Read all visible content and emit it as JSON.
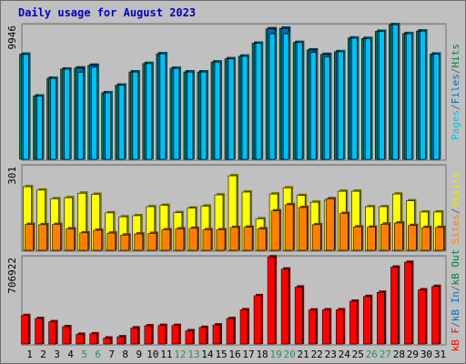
{
  "chart_data": [
    {
      "type": "bar",
      "title": "Daily usage for August 2023",
      "categories": [
        "1",
        "2",
        "3",
        "4",
        "5",
        "6",
        "7",
        "8",
        "9",
        "10",
        "11",
        "12",
        "13",
        "14",
        "15",
        "16",
        "17",
        "18",
        "19",
        "20",
        "21",
        "22",
        "23",
        "24",
        "25",
        "26",
        "27",
        "28",
        "29",
        "30",
        "31"
      ],
      "weekend_days": [
        "5",
        "6",
        "12",
        "13",
        "19",
        "20",
        "26",
        "27"
      ],
      "ymax_label": "9946",
      "ylim": [
        0,
        9946
      ],
      "right_labels": [
        {
          "text": "Pages",
          "color": "#00c0f0"
        },
        {
          "text": "/",
          "color": "#606060"
        },
        {
          "text": "Files",
          "color": "#0070c0"
        },
        {
          "text": "/",
          "color": "#606060"
        },
        {
          "text": "Hits",
          "color": "#008040"
        }
      ],
      "series": [
        {
          "name": "Hits",
          "color": "#008040",
          "values": [
            7750,
            4670,
            5980,
            6660,
            6740,
            6940,
            4910,
            5470,
            6450,
            7070,
            7790,
            6720,
            6450,
            6450,
            7180,
            7420,
            7610,
            8570,
            9630,
            9670,
            8620,
            8070,
            7740,
            7940,
            8950,
            8920,
            9450,
            9940,
            9280,
            9470,
            7770
          ]
        },
        {
          "name": "Files",
          "color": "#0070c0",
          "values": [
            7740,
            4660,
            5970,
            6650,
            6720,
            6930,
            4900,
            5460,
            6440,
            7060,
            7780,
            6710,
            6440,
            6440,
            7170,
            7410,
            7600,
            8560,
            9620,
            9660,
            8610,
            8060,
            7730,
            7930,
            8940,
            8910,
            9440,
            9930,
            9270,
            9460,
            7760
          ]
        },
        {
          "name": "Pages",
          "color": "#00c0f0",
          "values": [
            7740,
            4660,
            5970,
            6650,
            6420,
            6790,
            4900,
            5460,
            6440,
            7060,
            7780,
            6710,
            6440,
            6440,
            7170,
            7410,
            7600,
            8560,
            9270,
            9260,
            8610,
            7890,
            7570,
            7930,
            8940,
            8910,
            9440,
            9930,
            9270,
            9460,
            7760
          ]
        }
      ]
    },
    {
      "type": "bar",
      "ymax_label": "301",
      "ylim": [
        0,
        301
      ],
      "right_labels": [
        {
          "text": "Sites",
          "color": "#ff8000"
        },
        {
          "text": "/",
          "color": "#606060"
        },
        {
          "text": "Visits",
          "color": "#e8e800"
        }
      ],
      "series": [
        {
          "name": "Visits",
          "color": "#ffff00",
          "values": [
            226,
            214,
            183,
            187,
            203,
            199,
            133,
            119,
            123,
            155,
            160,
            134,
            150,
            157,
            197,
            265,
            207,
            112,
            200,
            222,
            195,
            171,
            178,
            210,
            210,
            155,
            155,
            200,
            176,
            136,
            136
          ]
        },
        {
          "name": "Sites",
          "color": "#ff8000",
          "values": [
            92,
            91,
            92,
            76,
            62,
            71,
            61,
            54,
            58,
            60,
            73,
            76,
            78,
            73,
            73,
            81,
            82,
            76,
            140,
            162,
            152,
            91,
            183,
            131,
            83,
            82,
            93,
            97,
            88,
            81,
            81
          ]
        }
      ]
    },
    {
      "type": "bar",
      "ymax_label": "706922",
      "ylim": [
        0,
        706922
      ],
      "right_labels": [
        {
          "text": "kB F",
          "color": "#ff0000"
        },
        {
          "text": "/",
          "color": "#606060"
        },
        {
          "text": "kB In",
          "color": "#0070c0"
        },
        {
          "text": "/",
          "color": "#606060"
        },
        {
          "text": "kB Out",
          "color": "#008040"
        }
      ],
      "series": [
        {
          "name": "kB F",
          "color": "#ff0000",
          "values": [
            230000,
            206000,
            180000,
            140000,
            78000,
            82000,
            48000,
            58000,
            130000,
            147000,
            150000,
            150000,
            107000,
            134000,
            154000,
            206000,
            277000,
            391000,
            705000,
            606000,
            461000,
            275000,
            276000,
            277000,
            346000,
            384000,
            418000,
            622000,
            661000,
            438000,
            466000
          ]
        }
      ]
    }
  ],
  "colors": {
    "frame": "#c0c0c0",
    "border": "#6e6e6e",
    "plot_bg": "#c0c0c0",
    "title_color": "#0000c0",
    "weekday_label": "#000000",
    "weekend_label": "#2e8b57"
  }
}
